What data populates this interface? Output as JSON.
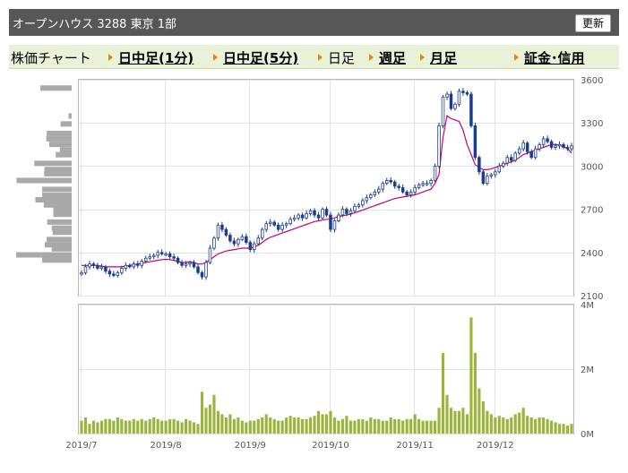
{
  "header": {
    "title": "オープンハウス 3288 東京 1部",
    "update_label": "更新"
  },
  "tabs": [
    {
      "label": "株価チャート",
      "link": false,
      "arrow": false
    },
    {
      "label": "日中足(1分)",
      "link": true,
      "arrow": true
    },
    {
      "label": "日中足(5分)",
      "link": true,
      "arrow": true
    },
    {
      "label": "日足",
      "link": false,
      "arrow": true
    },
    {
      "label": "週足",
      "link": true,
      "arrow": true
    },
    {
      "label": "月足",
      "link": true,
      "arrow": true
    },
    {
      "label": "証金･信用",
      "link": true,
      "arrow": true
    }
  ],
  "colors": {
    "up": "#ffffff",
    "down": "#1a3e8c",
    "ma": "#c8007a",
    "volume": "#99b53a",
    "profile": "#a9a9a9",
    "header_bg": "#575757",
    "tab_bg": "#eaf1d9"
  },
  "chart_data": [
    {
      "type": "candlestick",
      "y_ticks": [
        "3600",
        "3300",
        "3000",
        "2700",
        "2400",
        "2100"
      ],
      "ylim": [
        2100,
        3600
      ],
      "x_ticks": [
        "2019/7",
        "2019/8",
        "2019/9",
        "2019/10",
        "2019/11",
        "2019/12"
      ],
      "tick_day_index": [
        0,
        21,
        42,
        62,
        83,
        103
      ],
      "close": [
        2260,
        2300,
        2320,
        2310,
        2290,
        2300,
        2270,
        2250,
        2240,
        2260,
        2290,
        2310,
        2300,
        2320,
        2310,
        2340,
        2360,
        2370,
        2380,
        2400,
        2390,
        2390,
        2370,
        2360,
        2330,
        2310,
        2320,
        2330,
        2300,
        2260,
        2230,
        2330,
        2430,
        2500,
        2590,
        2560,
        2520,
        2480,
        2460,
        2490,
        2510,
        2470,
        2420,
        2460,
        2500,
        2560,
        2600,
        2610,
        2590,
        2560,
        2590,
        2600,
        2630,
        2640,
        2660,
        2640,
        2670,
        2690,
        2660,
        2640,
        2700,
        2660,
        2560,
        2620,
        2660,
        2700,
        2670,
        2690,
        2720,
        2730,
        2760,
        2780,
        2800,
        2820,
        2840,
        2880,
        2900,
        2890,
        2860,
        2850,
        2820,
        2800,
        2820,
        2850,
        2870,
        2880,
        2880,
        2900,
        3000,
        3280,
        3480,
        3500,
        3400,
        3430,
        3520,
        3510,
        3500,
        3280,
        3060,
        2960,
        2880,
        2930,
        2940,
        2960,
        3000,
        3020,
        3060,
        3040,
        3090,
        3120,
        3160,
        3100,
        3060,
        3120,
        3150,
        3190,
        3170,
        3130,
        3140,
        3150,
        3130,
        3120,
        3140
      ],
      "ma": [
        2310,
        2310,
        2310,
        2310,
        2310,
        2305,
        2300,
        2300,
        2300,
        2300,
        2300,
        2305,
        2310,
        2315,
        2320,
        2325,
        2330,
        2335,
        2340,
        2345,
        2350,
        2352,
        2350,
        2345,
        2340,
        2330,
        2330,
        2335,
        2330,
        2320,
        2320,
        2330,
        2350,
        2370,
        2390,
        2400,
        2410,
        2415,
        2420,
        2425,
        2430,
        2430,
        2430,
        2440,
        2450,
        2470,
        2490,
        2505,
        2515,
        2525,
        2535,
        2545,
        2555,
        2565,
        2575,
        2585,
        2595,
        2605,
        2615,
        2620,
        2625,
        2630,
        2630,
        2640,
        2650,
        2655,
        2660,
        2665,
        2675,
        2685,
        2695,
        2705,
        2715,
        2725,
        2735,
        2745,
        2755,
        2765,
        2775,
        2780,
        2785,
        2790,
        2795,
        2800,
        2810,
        2820,
        2830,
        2840,
        2880,
        2940,
        3200,
        3350,
        3330,
        3320,
        3310,
        3250,
        3150,
        3080,
        3010,
        2990,
        2975,
        2975,
        2980,
        2990,
        3000,
        3010,
        3020,
        3030,
        3040,
        3060,
        3080,
        3090,
        3100,
        3110,
        3120,
        3130,
        3140,
        3150,
        3150,
        3145,
        3135,
        3120,
        3090
      ]
    },
    {
      "type": "bar",
      "y_ticks": [
        "4M",
        "2M",
        "0M"
      ],
      "ylim": [
        0,
        4
      ],
      "volume": [
        0.4,
        0.5,
        0.3,
        0.4,
        0.35,
        0.4,
        0.45,
        0.45,
        0.4,
        0.5,
        0.45,
        0.4,
        0.4,
        0.45,
        0.4,
        0.45,
        0.4,
        0.45,
        0.5,
        0.45,
        0.4,
        0.4,
        0.45,
        0.45,
        0.4,
        0.35,
        0.45,
        0.4,
        0.35,
        0.3,
        1.3,
        0.8,
        0.9,
        1.2,
        0.7,
        0.6,
        0.5,
        0.6,
        0.45,
        0.5,
        0.4,
        0.35,
        0.4,
        0.4,
        0.45,
        0.5,
        0.6,
        0.5,
        0.45,
        0.4,
        0.4,
        0.5,
        0.55,
        0.5,
        0.5,
        0.45,
        0.45,
        0.5,
        0.55,
        0.7,
        0.6,
        0.6,
        0.7,
        0.5,
        0.4,
        0.45,
        0.55,
        0.4,
        0.4,
        0.45,
        0.45,
        0.4,
        0.5,
        0.45,
        0.45,
        0.4,
        0.4,
        0.5,
        0.45,
        0.45,
        0.4,
        0.45,
        0.45,
        0.6,
        0.45,
        0.4,
        0.4,
        0.4,
        0.4,
        0.8,
        2.5,
        1.2,
        0.8,
        0.7,
        0.7,
        0.8,
        0.6,
        3.6,
        2.5,
        1.4,
        1.0,
        0.7,
        0.6,
        0.5,
        0.55,
        0.5,
        0.45,
        0.5,
        0.6,
        0.65,
        0.8,
        0.55,
        0.5,
        0.45,
        0.5,
        0.5,
        0.45,
        0.4,
        0.35,
        0.3,
        0.3,
        0.25,
        0.3
      ]
    },
    {
      "type": "bar",
      "orientation": "horizontal",
      "price_bins": [
        3542,
        3348,
        3293,
        3227,
        3189,
        3151,
        3113,
        3079,
        3019,
        2976,
        2947,
        2900,
        2838,
        2797,
        2766,
        2730,
        2698,
        2665,
        2611,
        2569,
        2540,
        2490,
        2453,
        2425,
        2383,
        2347
      ],
      "values": [
        2.78,
        0.28,
        0.98,
        2.22,
        2.25,
        1.99,
        1.05,
        1.42,
        3.32,
        2.42,
        2.45,
        4.9,
        2.62,
        2.62,
        3.22,
        2.48,
        1.63,
        1.63,
        2.17,
        1.77,
        1.69,
        2.22,
        2.39,
        1.77,
        4.93,
        2.62
      ]
    }
  ]
}
